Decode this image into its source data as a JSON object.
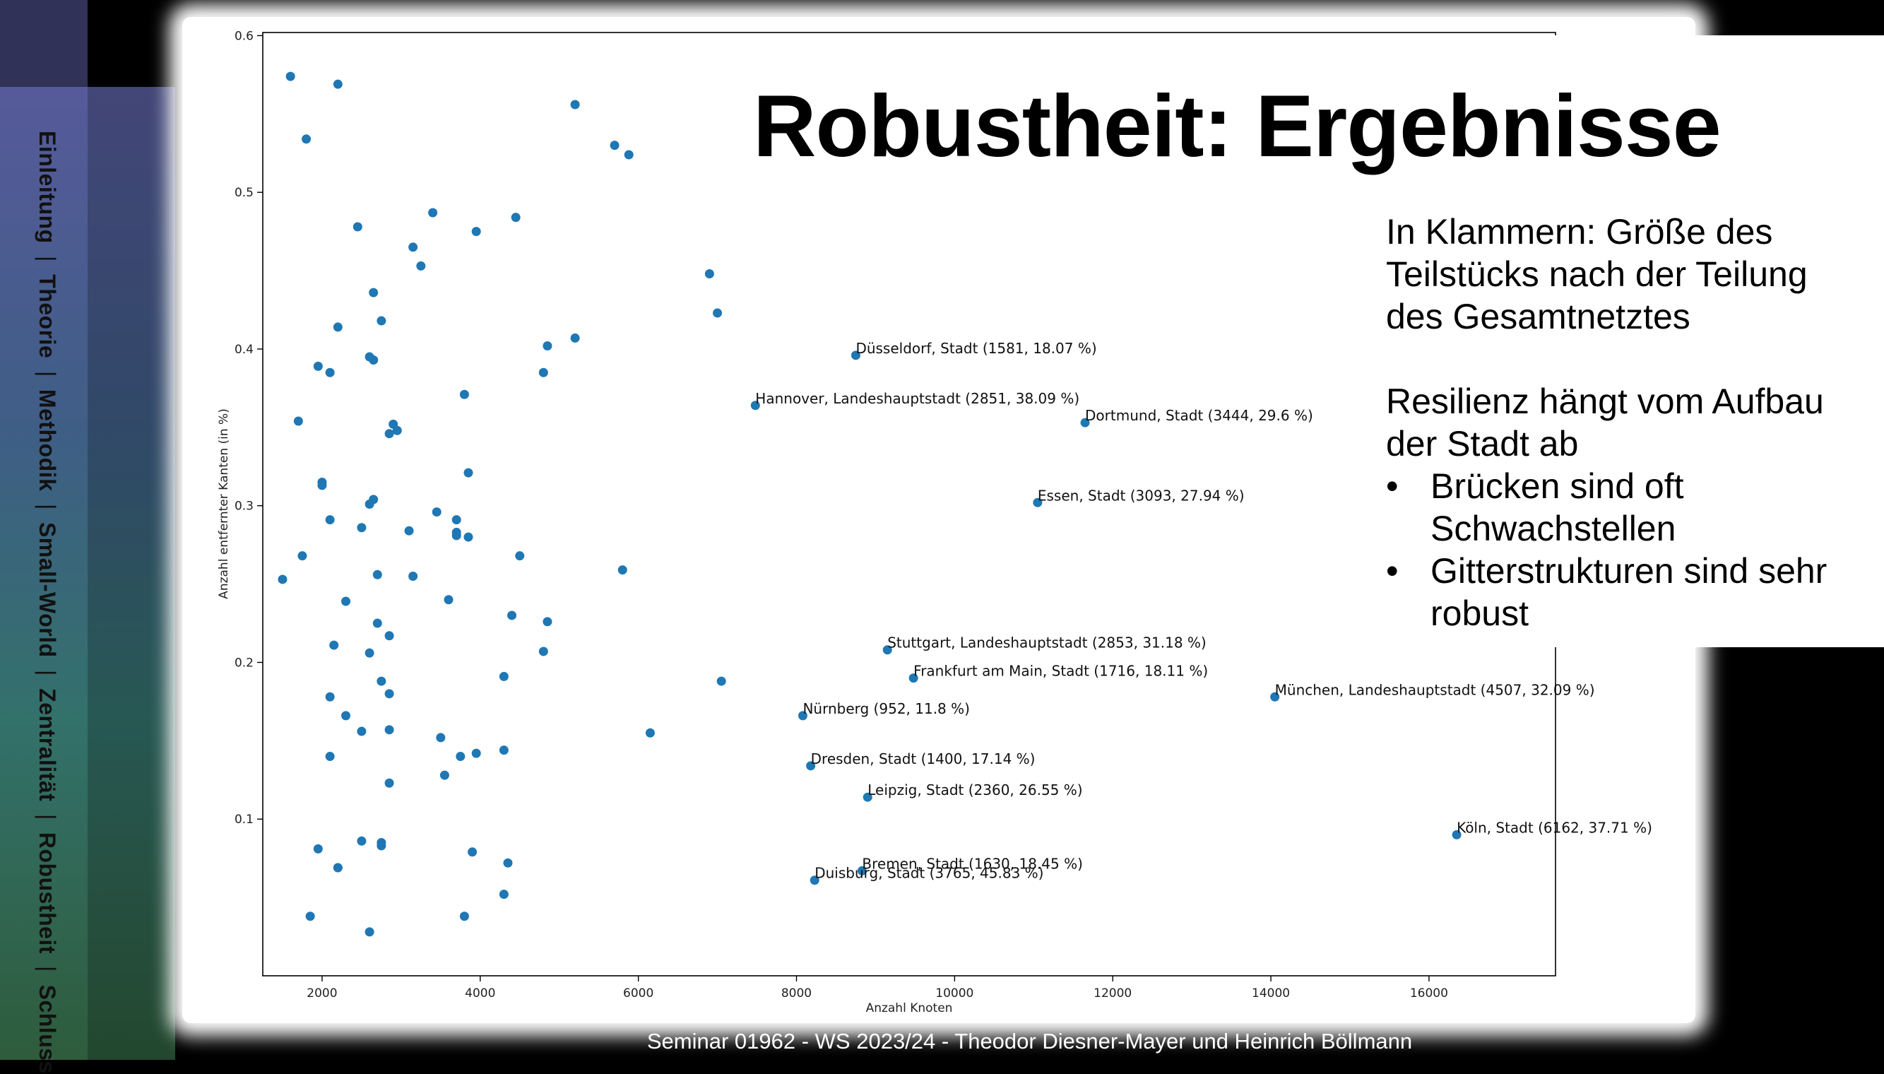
{
  "sidebar": {
    "items": [
      {
        "label": "Einleitung",
        "active": false
      },
      {
        "label": "Theorie",
        "active": false
      },
      {
        "label": "Methodik",
        "active": false
      },
      {
        "label": "Small-World",
        "active": false
      },
      {
        "label": "Zentralität",
        "active": false
      },
      {
        "label": "Robustheit",
        "active": true
      },
      {
        "label": "Schluss",
        "active": false
      }
    ],
    "separator": "|"
  },
  "title": "Robustheit: Ergebnisse",
  "notes": {
    "intro": "In Klammern: Größe des Teilstücks nach der Teilung des Gesamtnetztes",
    "lead": "Resilienz hängt vom Aufbau der Stadt ab",
    "bullets": [
      "Brücken sind oft Schwachstellen",
      "Gitterstrukturen sind sehr robust"
    ]
  },
  "footer": "Seminar 01962 - WS 2023/24 - Theodor Diesner-Mayer und Heinrich Böllmann",
  "colors": {
    "marker": "#1f77b4",
    "axis": "#000000"
  },
  "chart_data": {
    "type": "scatter",
    "xlabel": "Anzahl Knoten",
    "ylabel": "Anzahl entfernter Kanten (in %)",
    "xlim": [
      1250,
      17600
    ],
    "ylim": [
      0.0,
      0.602
    ],
    "xticks": [
      2000,
      4000,
      6000,
      8000,
      10000,
      12000,
      14000,
      16000
    ],
    "yticks": [
      0.1,
      0.2,
      0.3,
      0.4,
      0.5,
      0.6
    ],
    "grid": false,
    "points": [
      [
        1600,
        0.574
      ],
      [
        2200,
        0.569
      ],
      [
        1800,
        0.534
      ],
      [
        5200,
        0.556
      ],
      [
        5700,
        0.53
      ],
      [
        5880,
        0.524
      ],
      [
        3400,
        0.487
      ],
      [
        4450,
        0.484
      ],
      [
        2450,
        0.478
      ],
      [
        3950,
        0.475
      ],
      [
        3150,
        0.465
      ],
      [
        3250,
        0.453
      ],
      [
        6900,
        0.448
      ],
      [
        2650,
        0.436
      ],
      [
        7000,
        0.423
      ],
      [
        2750,
        0.418
      ],
      [
        2200,
        0.414
      ],
      [
        5200,
        0.407
      ],
      [
        4850,
        0.402
      ],
      [
        2600,
        0.395
      ],
      [
        2650,
        0.393
      ],
      [
        1950,
        0.389
      ],
      [
        2100,
        0.385
      ],
      [
        4800,
        0.385
      ],
      [
        3800,
        0.371
      ],
      [
        1700,
        0.354
      ],
      [
        2900,
        0.352
      ],
      [
        2950,
        0.348
      ],
      [
        2850,
        0.346
      ],
      [
        3850,
        0.321
      ],
      [
        2000,
        0.315
      ],
      [
        2000,
        0.313
      ],
      [
        2650,
        0.304
      ],
      [
        2600,
        0.301
      ],
      [
        3450,
        0.296
      ],
      [
        2100,
        0.291
      ],
      [
        3700,
        0.291
      ],
      [
        2500,
        0.286
      ],
      [
        3100,
        0.284
      ],
      [
        3700,
        0.283
      ],
      [
        3700,
        0.281
      ],
      [
        3850,
        0.28
      ],
      [
        1750,
        0.268
      ],
      [
        4500,
        0.268
      ],
      [
        5800,
        0.259
      ],
      [
        2700,
        0.256
      ],
      [
        3150,
        0.255
      ],
      [
        1500,
        0.253
      ],
      [
        2300,
        0.239
      ],
      [
        3600,
        0.24
      ],
      [
        4400,
        0.23
      ],
      [
        2700,
        0.225
      ],
      [
        4850,
        0.226
      ],
      [
        2850,
        0.217
      ],
      [
        2150,
        0.211
      ],
      [
        2600,
        0.206
      ],
      [
        4800,
        0.207
      ],
      [
        4300,
        0.191
      ],
      [
        2750,
        0.188
      ],
      [
        7050,
        0.188
      ],
      [
        2850,
        0.18
      ],
      [
        2100,
        0.178
      ],
      [
        2300,
        0.166
      ],
      [
        2500,
        0.156
      ],
      [
        2850,
        0.157
      ],
      [
        3500,
        0.152
      ],
      [
        6150,
        0.155
      ],
      [
        2100,
        0.14
      ],
      [
        3750,
        0.14
      ],
      [
        3950,
        0.142
      ],
      [
        4300,
        0.144
      ],
      [
        3550,
        0.128
      ],
      [
        2850,
        0.123
      ],
      [
        1950,
        0.081
      ],
      [
        2500,
        0.086
      ],
      [
        2750,
        0.085
      ],
      [
        2750,
        0.083
      ],
      [
        3900,
        0.079
      ],
      [
        2200,
        0.069
      ],
      [
        4350,
        0.072
      ],
      [
        4300,
        0.052
      ],
      [
        1850,
        0.038
      ],
      [
        3800,
        0.038
      ],
      [
        2600,
        0.028
      ],
      [
        2200,
        0.069
      ]
    ],
    "annotations": [
      {
        "label": "Düsseldorf, Stadt (1581, 18.07 %)",
        "x": 8750,
        "y": 0.396
      },
      {
        "label": "Hannover, Landeshauptstadt (2851, 38.09 %)",
        "x": 7480,
        "y": 0.364
      },
      {
        "label": "Dortmund, Stadt (3444, 29.6 %)",
        "x": 11650,
        "y": 0.353
      },
      {
        "label": "Essen, Stadt (3093, 27.94 %)",
        "x": 11050,
        "y": 0.302
      },
      {
        "label": "Stuttgart, Landeshauptstadt (2853, 31.18 %)",
        "x": 9150,
        "y": 0.208
      },
      {
        "label": "Frankfurt am Main, Stadt (1716, 18.11 %)",
        "x": 9480,
        "y": 0.19
      },
      {
        "label": "München, Landeshauptstadt (4507, 32.09 %)",
        "x": 14050,
        "y": 0.178
      },
      {
        "label": "Nürnberg (952, 11.8 %)",
        "x": 8080,
        "y": 0.166
      },
      {
        "label": "Dresden, Stadt (1400, 17.14 %)",
        "x": 8180,
        "y": 0.134
      },
      {
        "label": "Leipzig, Stadt (2360, 26.55 %)",
        "x": 8900,
        "y": 0.114
      },
      {
        "label": "Köln, Stadt (6162, 37.71 %)",
        "x": 16350,
        "y": 0.09
      },
      {
        "label": "Bremen, Stadt (1630, 18.45 %)",
        "x": 8830,
        "y": 0.067
      },
      {
        "label": "Duisburg, Stadt (3765, 45.83 %)",
        "x": 8230,
        "y": 0.061
      }
    ]
  }
}
